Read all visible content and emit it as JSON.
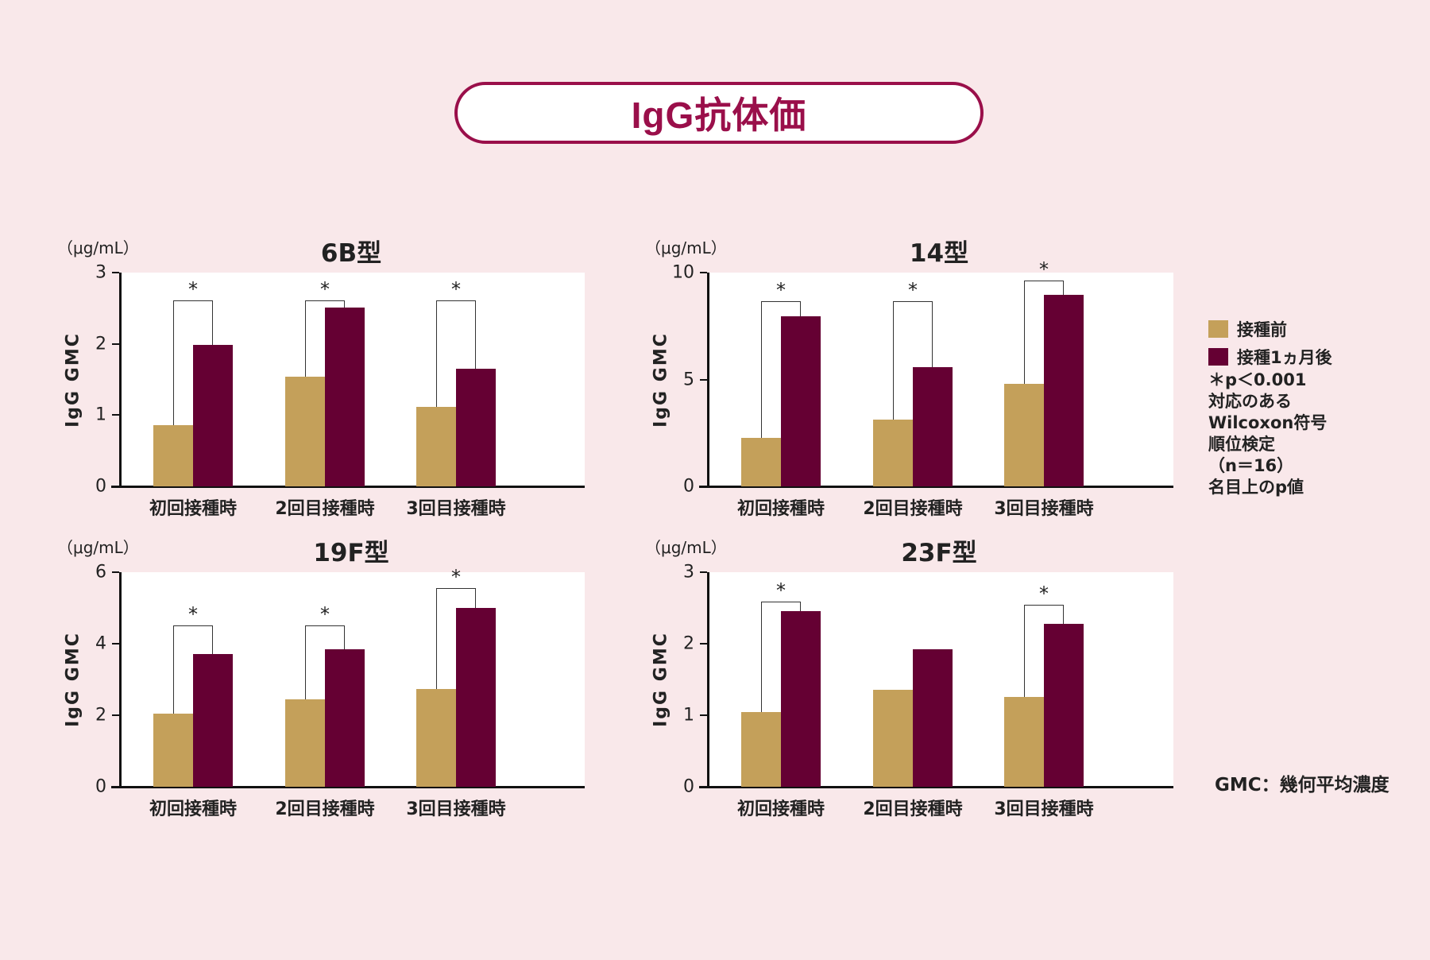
{
  "title": "IgG抗体価",
  "legend": {
    "items": [
      {
        "label": "接種前",
        "color": "#c4a05a"
      },
      {
        "label": "接種1ヵ月後",
        "color": "#650033"
      }
    ]
  },
  "note": {
    "lines": [
      "＊p＜0.001",
      "対応のある",
      "Wilcoxon符号",
      "順位検定",
      "（n＝16）",
      "名目上のp値"
    ]
  },
  "gmc_note": "GMC：幾何平均濃度",
  "colors": {
    "background": "#f9e8ea",
    "accent": "#9a0f4a",
    "before": "#c4a05a",
    "after": "#650033"
  },
  "chart_data": [
    {
      "type": "bar",
      "title": "6B型",
      "unit": "（μg/mL）",
      "ylabel": "IgG GMC",
      "xlabel": "",
      "ylim": [
        0,
        3
      ],
      "yticks": [
        0,
        1,
        2,
        3
      ],
      "categories": [
        "初回接種時",
        "2回目接種時",
        "3回目接種時"
      ],
      "series": [
        {
          "name": "接種前",
          "values": [
            0.86,
            1.54,
            1.12
          ]
        },
        {
          "name": "接種1ヵ月後",
          "values": [
            1.98,
            2.51,
            1.65
          ]
        }
      ],
      "significance": [
        {
          "label": "*",
          "bracket": 2.61
        },
        {
          "label": "*",
          "bracket": 2.61
        },
        {
          "label": "*",
          "bracket": 2.61
        }
      ],
      "grid": false,
      "legend_position": "right"
    },
    {
      "type": "bar",
      "title": "14型",
      "unit": "（μg/mL）",
      "ylabel": "IgG GMC",
      "xlabel": "",
      "ylim": [
        0,
        10
      ],
      "yticks": [
        0,
        5,
        10
      ],
      "categories": [
        "初回接種時",
        "2回目接種時",
        "3回目接種時"
      ],
      "series": [
        {
          "name": "接種前",
          "values": [
            2.27,
            3.12,
            4.8
          ]
        },
        {
          "name": "接種1ヵ月後",
          "values": [
            7.95,
            5.58,
            8.96
          ]
        }
      ],
      "significance": [
        {
          "label": "*",
          "bracket": 8.68
        },
        {
          "label": "*",
          "bracket": 8.68
        },
        {
          "label": "*",
          "bracket": 9.62
        }
      ],
      "grid": false,
      "legend_position": "right"
    },
    {
      "type": "bar",
      "title": "19F型",
      "unit": "（μg/mL）",
      "ylabel": "IgG GMC",
      "xlabel": "",
      "ylim": [
        0,
        6
      ],
      "yticks": [
        0,
        2,
        4,
        6
      ],
      "categories": [
        "初回接種時",
        "2回目接種時",
        "3回目接種時"
      ],
      "series": [
        {
          "name": "接種前",
          "values": [
            2.05,
            2.44,
            2.74
          ]
        },
        {
          "name": "接種1ヵ月後",
          "values": [
            3.72,
            3.85,
            5.0
          ]
        }
      ],
      "significance": [
        {
          "label": "*",
          "bracket": 4.51
        },
        {
          "label": "*",
          "bracket": 4.51
        },
        {
          "label": "*",
          "bracket": 5.56
        }
      ],
      "grid": false,
      "legend_position": "right"
    },
    {
      "type": "bar",
      "title": "23F型",
      "unit": "（μg/mL）",
      "ylabel": "IgG GMC",
      "xlabel": "",
      "ylim": [
        0,
        3
      ],
      "yticks": [
        0,
        1,
        2,
        3
      ],
      "categories": [
        "初回接種時",
        "2回目接種時",
        "3回目接種時"
      ],
      "series": [
        {
          "name": "接種前",
          "values": [
            1.04,
            1.36,
            1.26
          ]
        },
        {
          "name": "接種1ヵ月後",
          "values": [
            2.46,
            1.92,
            2.28
          ]
        }
      ],
      "significance": [
        {
          "label": "*",
          "bracket": 2.59
        },
        null,
        {
          "label": "*",
          "bracket": 2.55
        }
      ],
      "grid": false,
      "legend_position": "right"
    }
  ]
}
